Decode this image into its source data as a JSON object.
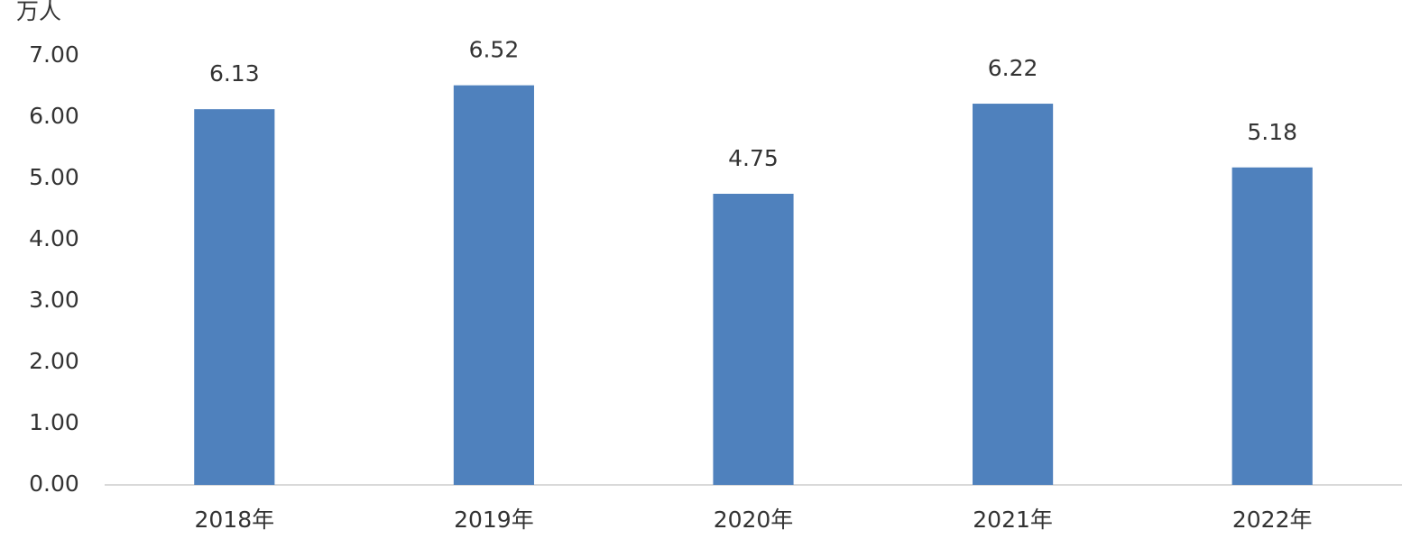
{
  "chart_data": {
    "type": "bar",
    "y_label": "万人",
    "categories": [
      "2018年",
      "2019年",
      "2020年",
      "2021年",
      "2022年"
    ],
    "values": [
      6.13,
      6.52,
      4.75,
      6.22,
      5.18
    ],
    "color": "#4f81bd",
    "ylim": [
      0,
      7
    ],
    "yticks": [
      {
        "value": 0,
        "label": "0.00"
      },
      {
        "value": 1,
        "label": "1.00"
      },
      {
        "value": 2,
        "label": "2.00"
      },
      {
        "value": 3,
        "label": "3.00"
      },
      {
        "value": 4,
        "label": "4.00"
      },
      {
        "value": 5,
        "label": "5.00"
      },
      {
        "value": 6,
        "label": "6.00"
      },
      {
        "value": 7,
        "label": "7.00"
      }
    ],
    "grid": false
  }
}
